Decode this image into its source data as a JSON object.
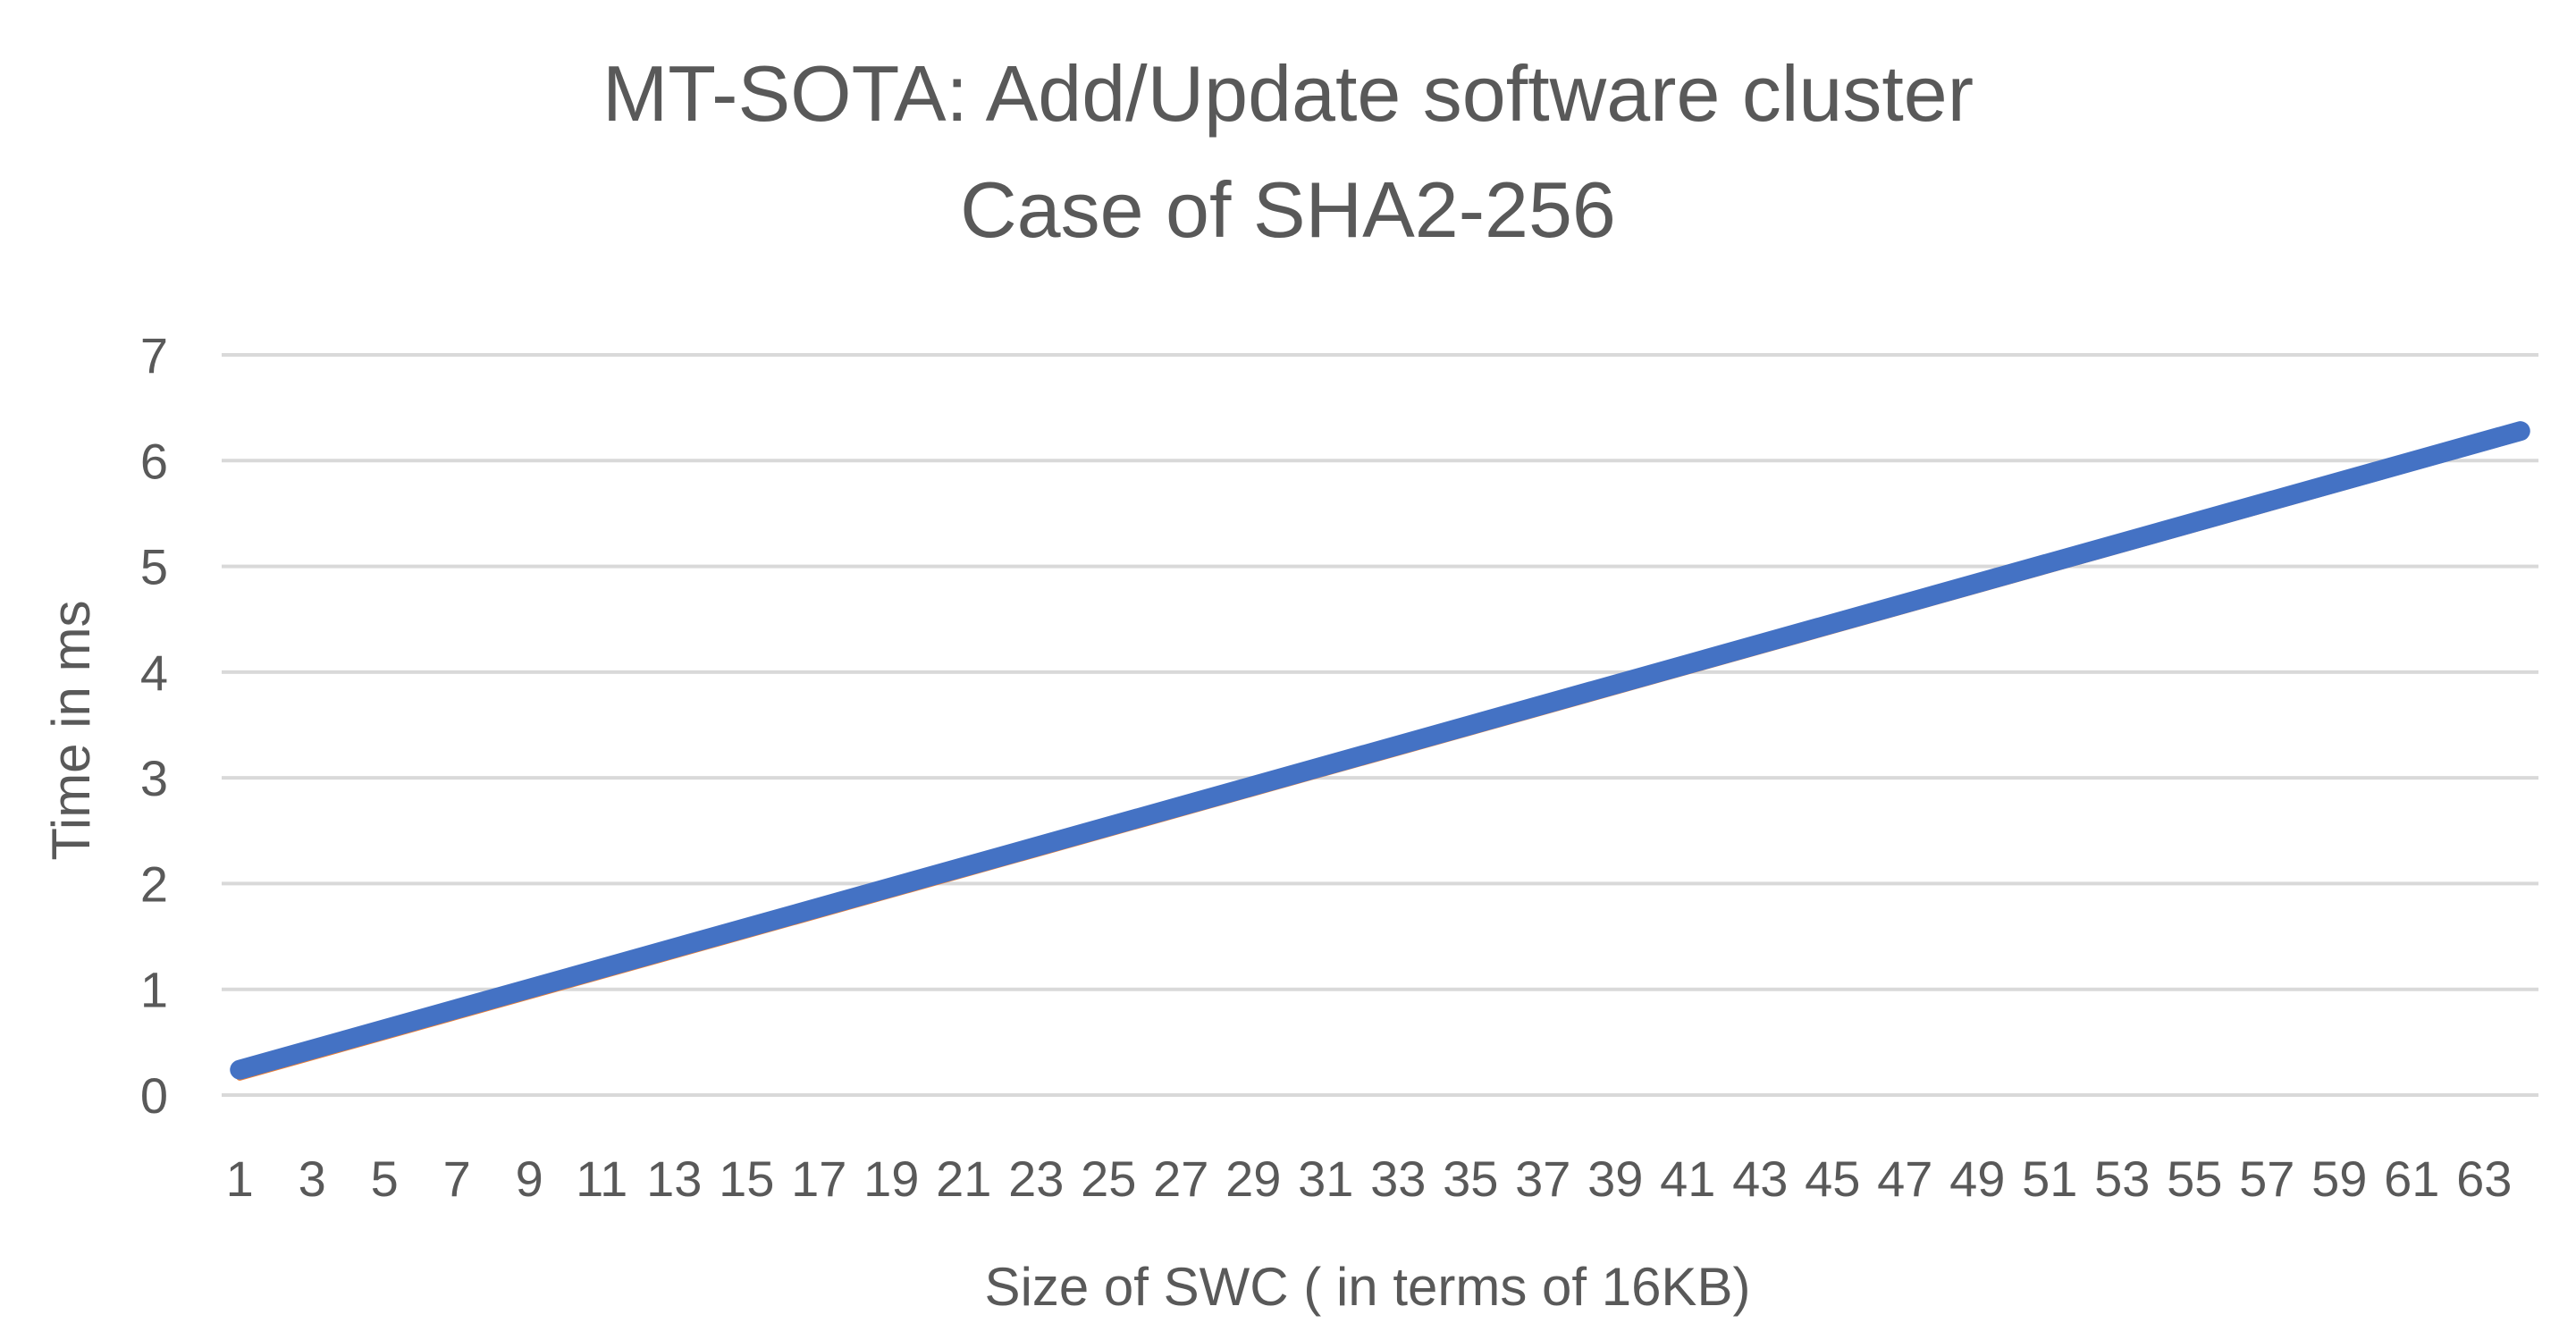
{
  "chart_data": {
    "type": "line",
    "title": [
      "MT-SOTA: Add/Update software cluster",
      "Case of SHA2-256"
    ],
    "xlabel": "Size of SWC ( in terms of 16KB)",
    "ylabel": "Time in ms",
    "ylim": [
      0,
      7
    ],
    "yticks": [
      "0",
      "1",
      "2",
      "3",
      "4",
      "5",
      "6",
      "7"
    ],
    "grid": true,
    "legend": "none",
    "x_start": 1,
    "x_end": 64,
    "xtick_labels": [
      "1",
      "3",
      "5",
      "7",
      "9",
      "11",
      "13",
      "15",
      "17",
      "19",
      "21",
      "23",
      "25",
      "27",
      "29",
      "31",
      "33",
      "35",
      "37",
      "39",
      "41",
      "43",
      "45",
      "47",
      "49",
      "51",
      "53",
      "55",
      "57",
      "59",
      "61",
      "63"
    ],
    "series": [
      {
        "color": "#ed7d31",
        "start_value": 0.17,
        "end_value": 6.22
      },
      {
        "color": "#a5a5a5",
        "start_value": 0.18,
        "end_value": 6.23
      },
      {
        "color": "#70ad47",
        "start_value": 0.19,
        "end_value": 6.24
      },
      {
        "color": "#4472c4",
        "start_value": 0.24,
        "end_value": 6.28
      }
    ]
  }
}
